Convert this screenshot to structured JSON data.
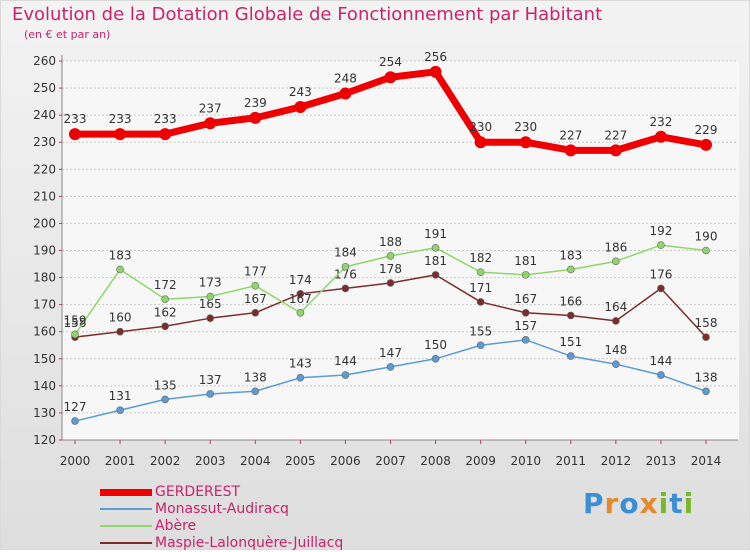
{
  "title": "Evolution de la Dotation Globale de Fonctionnement par Habitant",
  "subtitle": "(en € et par an)",
  "brand": {
    "letters": [
      "P",
      "r",
      "o",
      "x",
      "i",
      "t",
      "i"
    ],
    "colors": [
      "#3a8fd6",
      "#e6892a",
      "#3a8fd6",
      "#e6892a",
      "#7ab829",
      "#3a8fd6",
      "#7ab829"
    ]
  },
  "chart_data": {
    "type": "line",
    "x": [
      "2000",
      "2001",
      "2002",
      "2003",
      "2004",
      "2005",
      "2006",
      "2007",
      "2008",
      "2009",
      "2010",
      "2011",
      "2012",
      "2013",
      "2014"
    ],
    "ylim": [
      120,
      260
    ],
    "yticks": [
      120,
      130,
      140,
      150,
      160,
      170,
      180,
      190,
      200,
      210,
      220,
      230,
      240,
      250,
      260
    ],
    "grid": true,
    "legend_position": "bottom-left",
    "series": [
      {
        "name": "GERDEREST",
        "color": "#ee0000",
        "values": [
          233,
          233,
          233,
          237,
          239,
          243,
          248,
          254,
          256,
          230,
          230,
          227,
          227,
          232,
          229
        ]
      },
      {
        "name": "Monassut-Audiracq",
        "color": "#5b9bd5",
        "values": [
          127,
          131,
          135,
          137,
          138,
          143,
          144,
          147,
          150,
          155,
          157,
          151,
          148,
          144,
          138
        ]
      },
      {
        "name": "Abère",
        "color": "#8fd66a",
        "values": [
          159,
          183,
          172,
          173,
          177,
          167,
          184,
          188,
          191,
          182,
          181,
          183,
          186,
          192,
          190
        ]
      },
      {
        "name": "Maspie-Lalonquère-Juillacq",
        "color": "#7b2c2c",
        "values": [
          158,
          160,
          162,
          165,
          167,
          174,
          176,
          178,
          181,
          171,
          167,
          166,
          164,
          176,
          158
        ]
      }
    ]
  }
}
